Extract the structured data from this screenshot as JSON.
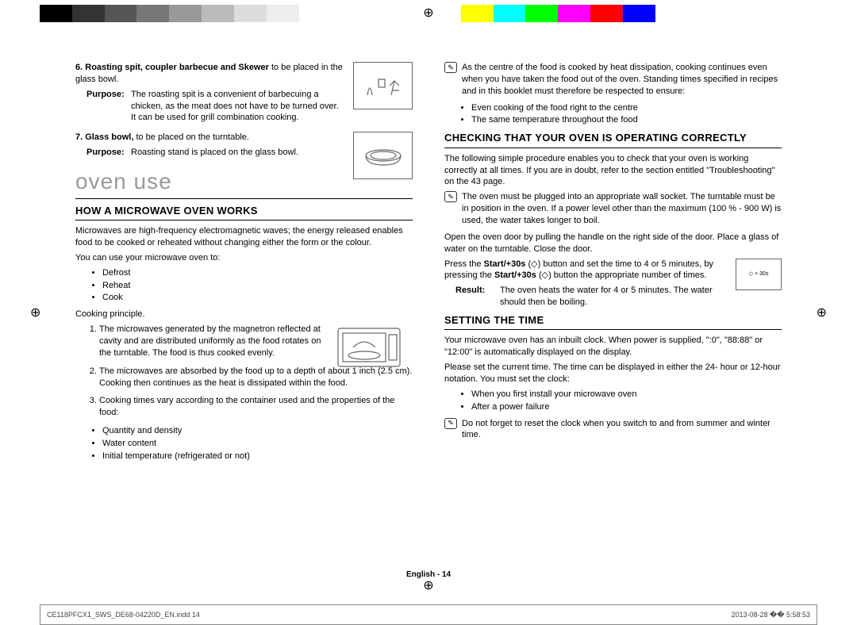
{
  "colorbar": [
    "#000000",
    "#333333",
    "#555555",
    "#777777",
    "#999999",
    "#bbbbbb",
    "#dddddd",
    "#eeeeee",
    "#ffffff",
    "#ffffff",
    "#ffffff",
    "#ffffff",
    "#ffffff",
    "#ffff00",
    "#00ffff",
    "#00ff00",
    "#ff00ff",
    "#ff0000",
    "#0000ff",
    "#ffffff",
    "#ffffff",
    "#ffffff",
    "#ffffff",
    "#ffffff"
  ],
  "left": {
    "item6": {
      "num": "6.",
      "title": "Roasting spit, coupler barbecue and Skewer",
      "after": " to be placed in the glass bowl.",
      "purposeLabel": "Purpose:",
      "purpose": "The roasting spit is a convenient of barbecuing a chicken, as the meat does not have to be turned over. It can be used for grill combination cooking."
    },
    "item7": {
      "num": "7.",
      "title": "Glass bowl,",
      "after": " to be placed on the turntable.",
      "purposeLabel": "Purpose:",
      "purpose": "Roasting stand is placed on the glass bowl."
    },
    "sectionTitle": "oven use",
    "heading1": "HOW A MICROWAVE OVEN WORKS",
    "intro": "Microwaves are high-frequency electromagnetic waves; the energy released enables food to be cooked or reheated without changing either the form or the colour.",
    "useLine": "You can use your microwave oven to:",
    "uses": [
      "Defrost",
      "Reheat",
      "Cook"
    ],
    "cookingLabel": "Cooking principle.",
    "cook1": "The microwaves generated by the magnetron reflected at cavity and are distributed uniformly as the food rotates on the turntable. The food is thus cooked evenly.",
    "cook2": "The microwaves are absorbed by the food up to a depth of about 1 inch (2.5 cm). Cooking then continues as the heat is dissipated within the food.",
    "cook3": "Cooking times vary according to the container used and the properties of the food:",
    "props": [
      "Quantity and density",
      "Water content",
      "Initial temperature (refrigerated or not)"
    ]
  },
  "right": {
    "note1": "As the centre of the food is cooked by heat dissipation, cooking continues even when you have taken the food out of the oven. Standing times specified in recipes and in this booklet must therefore be respected to ensure:",
    "note1bul": [
      "Even cooking of the food right to the centre",
      "The same temperature throughout the food"
    ],
    "heading2": "CHECKING THAT YOUR OVEN IS OPERATING CORRECTLY",
    "check1": "The following simple procedure enables you to check that your oven is working correctly at all times. If you are in doubt, refer to the section entitled \"Troubleshooting\" on the 43 page.",
    "note2": "The oven must be plugged into an appropriate wall socket. The turntable must be in position in the oven. If a power level other than the maximum (100 % - 900 W) is used, the water takes longer to boil.",
    "open": "Open the oven door by pulling the handle on the right side of the door. Place a glass of water on the turntable. Close the door.",
    "pressA": "Press the ",
    "bStart": "Start/+30s",
    "pressB": " (◇) button and set the time to 4 or 5 minutes, by pressing the ",
    "pressC": " (◇) button the appropriate number of times.",
    "resultLabel": "Result:",
    "result": "The oven heats the water for 4 or 5 minutes. The water should then be boiling.",
    "buttonLabel": "◇ + 30s",
    "heading3": "SETTING THE TIME",
    "time1": "Your microwave oven has an inbuilt clock. When power is supplied, \":0\", \"88:88\" or \"12:00\" is automatically displayed on the display.",
    "time2": "Please set the current time. The time can be displayed in either the 24- hour or 12-hour notation. You must set the clock:",
    "timebul": [
      "When you first install your microwave oven",
      "After a power failure"
    ],
    "note3": "Do not forget to reset the clock when you switch to and from summer and winter time."
  },
  "footer": {
    "page": "English - 14",
    "file": "CE118PFCX1_SWS_DE68-04220D_EN.indd   14",
    "ts": "2013-08-28   �� 5:58:53"
  }
}
